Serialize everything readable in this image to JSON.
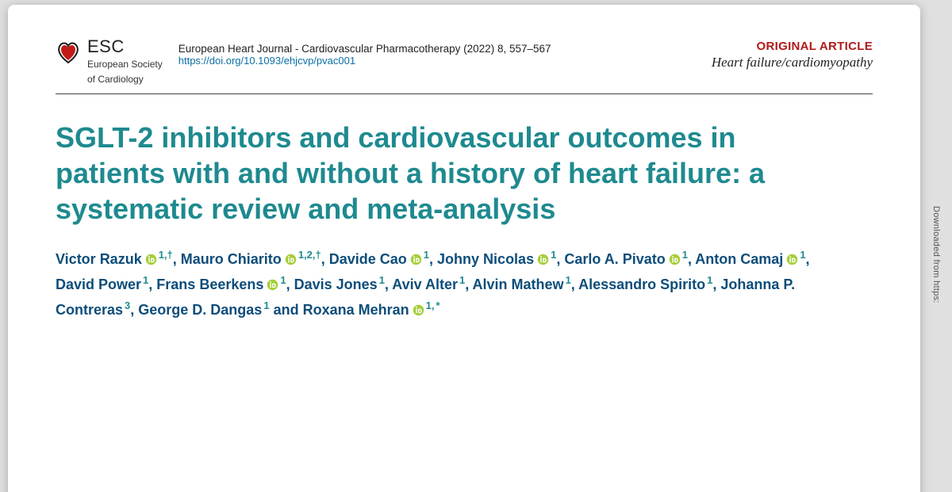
{
  "logo": {
    "esc": "ESC",
    "sub1": "European Society",
    "sub2": "of Cardiology"
  },
  "journal": {
    "citation": "European Heart Journal - Cardiovascular Pharmacotherapy (2022) 8, 557–567",
    "doi": "https://doi.org/10.1093/ehjcvp/pvac001"
  },
  "articleType": {
    "badge": "ORIGINAL ARTICLE",
    "section": "Heart failure/cardiomyopathy"
  },
  "title": "SGLT-2 inhibitors and cardiovascular outcomes in patients with and without a history of heart failure: a systematic review and meta-analysis",
  "authors": [
    {
      "name": "Victor Razuk",
      "orcid": true,
      "aff": "1,†"
    },
    {
      "name": "Mauro Chiarito",
      "orcid": true,
      "aff": "1,2,†"
    },
    {
      "name": "Davide Cao",
      "orcid": true,
      "aff": "1"
    },
    {
      "name": "Johny Nicolas",
      "orcid": true,
      "aff": "1"
    },
    {
      "name": "Carlo A. Pivato",
      "orcid": true,
      "aff": "1"
    },
    {
      "name": "Anton Camaj",
      "orcid": true,
      "aff": "1"
    },
    {
      "name": "David Power",
      "orcid": false,
      "aff": "1"
    },
    {
      "name": "Frans Beerkens",
      "orcid": true,
      "aff": "1"
    },
    {
      "name": "Davis Jones",
      "orcid": false,
      "aff": "1"
    },
    {
      "name": "Aviv Alter",
      "orcid": false,
      "aff": "1"
    },
    {
      "name": "Alvin Mathew",
      "orcid": false,
      "aff": "1"
    },
    {
      "name": "Alessandro Spirito",
      "orcid": false,
      "aff": "1"
    },
    {
      "name": "Johanna P. Contreras",
      "orcid": false,
      "aff": "3"
    },
    {
      "name": "George D. Dangas",
      "orcid": false,
      "aff": "1"
    },
    {
      "name": "Roxana Mehran",
      "orcid": true,
      "aff": "1,",
      "corr": true
    }
  ],
  "side": "Downloaded from https:",
  "colors": {
    "title": "#1e8a8f",
    "author": "#0d4d7a",
    "badge": "#b11a1a",
    "orcid": "#a6ce39",
    "heartRed": "#c21b17",
    "heartDark": "#1a1a1a",
    "link": "#0b6fa4"
  }
}
